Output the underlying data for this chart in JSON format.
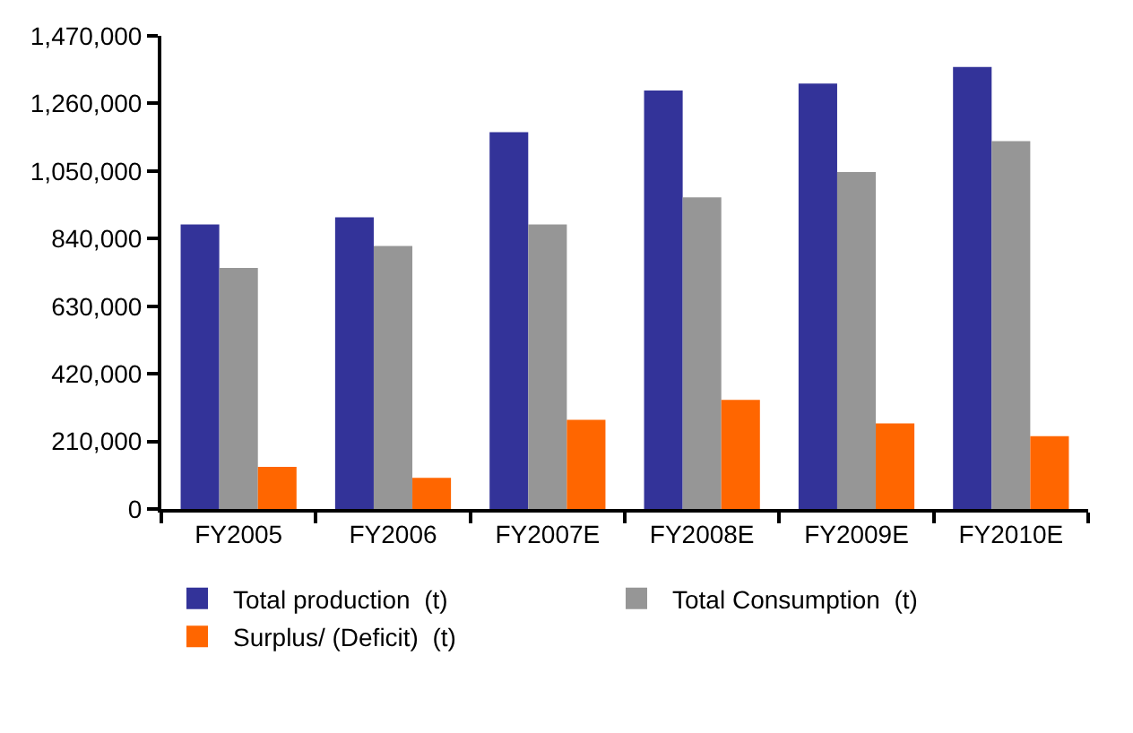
{
  "chart_data": {
    "type": "bar",
    "categories": [
      "FY2005",
      "FY2006",
      "FY2007E",
      "FY2008E",
      "FY2009E",
      "FY2010E"
    ],
    "series": [
      {
        "name": "Total production  (t)",
        "color": "#333399",
        "values": [
          884000,
          906000,
          1171000,
          1300000,
          1322000,
          1373000
        ]
      },
      {
        "name": "Total Consumption  (t)",
        "color": "#969696",
        "values": [
          749000,
          817000,
          884000,
          968000,
          1047000,
          1143000
        ]
      },
      {
        "name": "Surplus/ (Deficit)  (t)",
        "color": "#ff6600",
        "values": [
          131000,
          97000,
          277000,
          339000,
          266000,
          226000
        ]
      }
    ],
    "ylim": [
      0,
      1470000
    ],
    "yticks": [
      0,
      {
        "value": 210000,
        "label": "210,000"
      },
      {
        "value": 420000,
        "label": "420,000"
      },
      {
        "value": 630000,
        "label": "630,000"
      },
      {
        "value": 840000,
        "label": "840,000"
      },
      {
        "value": 1050000,
        "label": "1,050,000"
      },
      {
        "value": 1260000,
        "label": "1,260,000"
      },
      {
        "value": 1470000,
        "label": "1,470,000"
      }
    ],
    "legend": "bottom"
  }
}
